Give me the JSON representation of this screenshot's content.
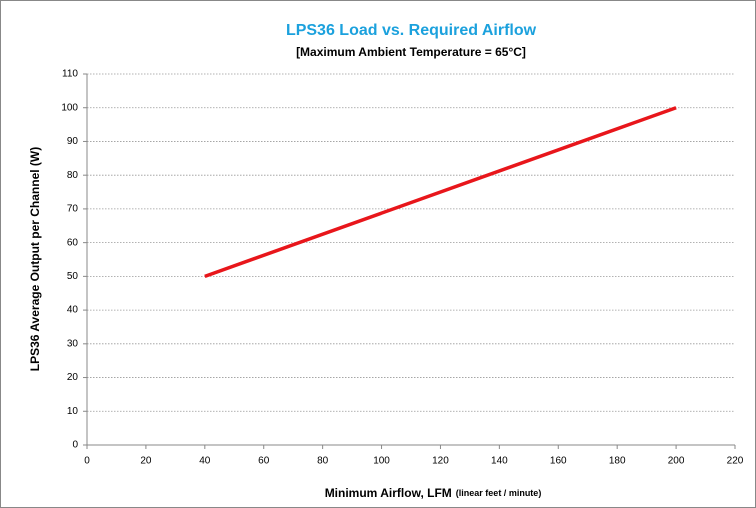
{
  "chart_data": {
    "type": "line",
    "title": "LPS36 Load vs. Required Airflow",
    "subtitle": "[Maximum Ambient Temperature = 65°C]",
    "xlabel": "Minimum Airflow, LFM",
    "xlabel_note": "(linear feet / minute)",
    "ylabel": "LPS36 Average Output per Channel (W)",
    "x": [
      40,
      200
    ],
    "series": [
      {
        "name": "LPS36",
        "color": "#e8161b",
        "values": [
          50,
          100
        ]
      }
    ],
    "xlim": [
      0,
      220
    ],
    "xticks": [
      0,
      20,
      40,
      60,
      80,
      100,
      120,
      140,
      160,
      180,
      200,
      220
    ],
    "ylim": [
      0,
      110
    ],
    "yticks": [
      0,
      10,
      20,
      30,
      40,
      50,
      60,
      70,
      80,
      90,
      100,
      110
    ],
    "grid": true
  }
}
